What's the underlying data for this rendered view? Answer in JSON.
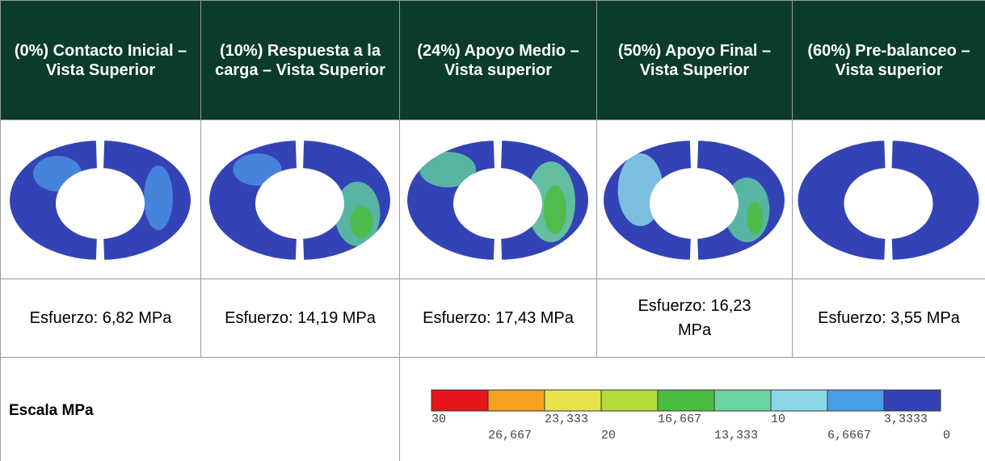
{
  "table": {
    "headers": [
      "(0%) Contacto Inicial – Vista Superior",
      "(10%) Respuesta a la carga – Vista Superior",
      "(24%) Apoyo Medio – Vista superior",
      "(50%) Apoyo Final – Vista Superior",
      "(60%) Pre-balanceo – Vista superior"
    ],
    "stresses": [
      "Esfuerzo: 6,82 MPa",
      "Esfuerzo: 14,19 MPa",
      "Esfuerzo: 17,43 MPa",
      "Esfuerzo: 16,23 MPa",
      "Esfuerzo: 3,55 MPa"
    ],
    "scale": {
      "title": "Escala MPa",
      "colors": [
        "#e8141c",
        "#f5a01e",
        "#e6e44a",
        "#b2dc3a",
        "#4cbc40",
        "#6cd49e",
        "#8ad6e6",
        "#4a9ee6",
        "#3343b6"
      ],
      "labels": [
        "30",
        "26,667",
        "23,333",
        "20",
        "16,667",
        "13,333",
        "10",
        "6,6667",
        "3,3333",
        "0"
      ]
    }
  }
}
